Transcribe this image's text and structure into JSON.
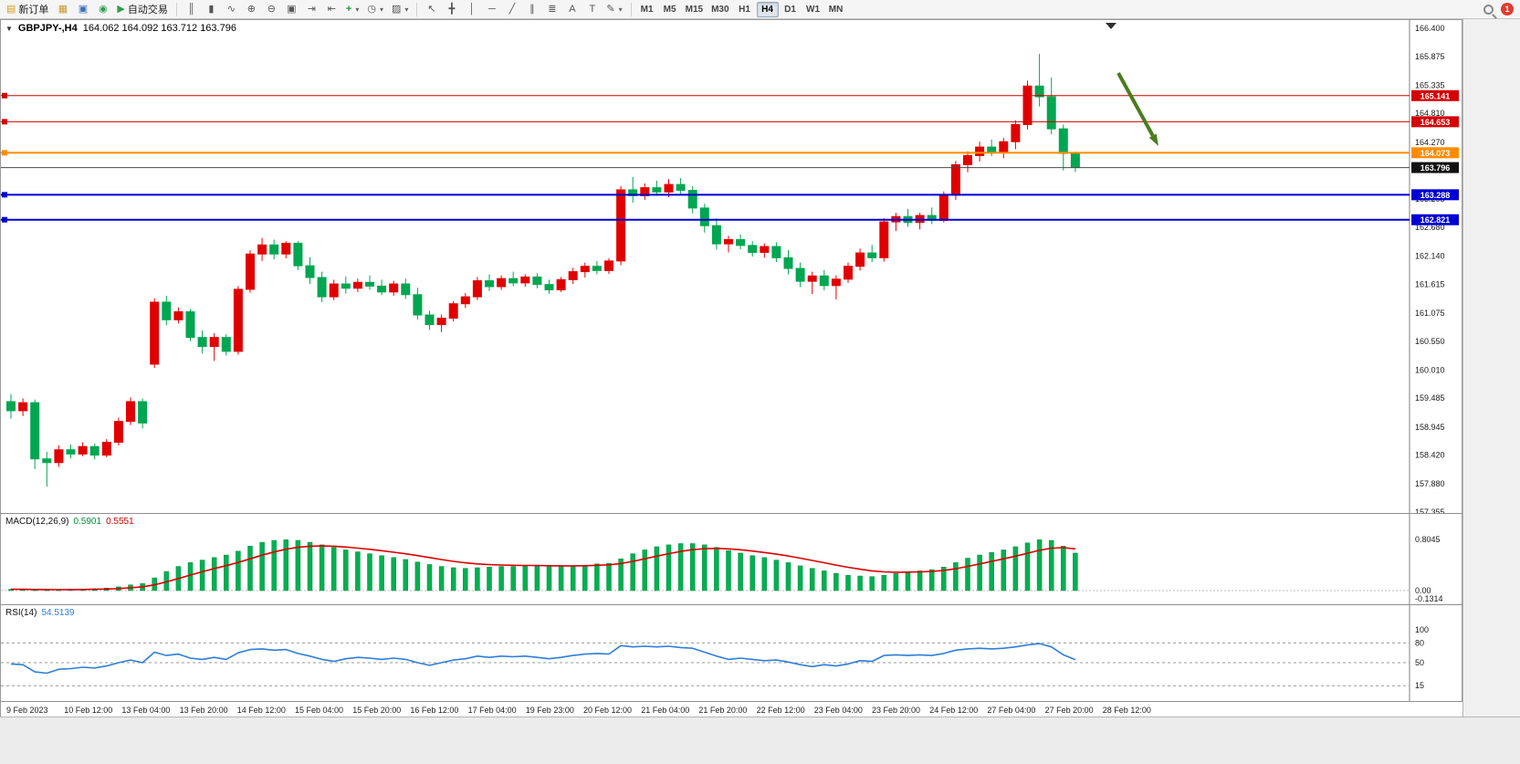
{
  "toolbar": {
    "file_buttons": [
      {
        "name": "new-order-button",
        "icon": "order-ticket-icon",
        "glyph": "▤",
        "glyph_color": "#d89c1e",
        "label": "新订单"
      },
      {
        "name": "new-chart-button",
        "icon": "new-chart-icon",
        "glyph": "▦",
        "glyph_color": "#c89a30"
      },
      {
        "name": "profiles-button",
        "icon": "profiles-icon",
        "glyph": "▣",
        "glyph_color": "#3f6fb5"
      },
      {
        "name": "market-watch-button",
        "icon": "market-watch-icon",
        "glyph": "◉",
        "glyph_color": "#2f9e4f"
      },
      {
        "name": "autotrading-button",
        "icon": "play-icon",
        "glyph": "▶",
        "glyph_color": "#2f9e4f",
        "label": "自动交易"
      }
    ],
    "chart_buttons": [
      {
        "name": "bar-chart-button",
        "icon": "bar-chart-icon",
        "glyph": "║"
      },
      {
        "name": "candlestick-button",
        "icon": "candlestick-icon",
        "glyph": "▮"
      },
      {
        "name": "line-chart-button",
        "icon": "line-chart-icon",
        "glyph": "∿"
      },
      {
        "name": "zoom-in-button",
        "icon": "zoom-in-icon",
        "glyph": "⊕"
      },
      {
        "name": "zoom-out-button",
        "icon": "zoom-out-icon",
        "glyph": "⊖"
      },
      {
        "name": "tile-windows-button",
        "icon": "tile-windows-icon",
        "glyph": "▣"
      },
      {
        "name": "auto-scroll-button",
        "icon": "auto-scroll-icon",
        "glyph": "⇥"
      },
      {
        "name": "chart-shift-button",
        "icon": "chart-shift-icon",
        "glyph": "⇤"
      },
      {
        "name": "indicators-button",
        "icon": "indicators-icon",
        "glyph": "+",
        "glyph_color": "#1f9e3f",
        "dropdown": true
      },
      {
        "name": "periods-button",
        "icon": "clock-icon",
        "glyph": "◷",
        "dropdown": true
      },
      {
        "name": "templates-button",
        "icon": "template-icon",
        "glyph": "▨",
        "dropdown": true
      }
    ],
    "line_buttons": [
      {
        "name": "cursor-button",
        "icon": "cursor-icon",
        "glyph": "↖"
      },
      {
        "name": "crosshair-button",
        "icon": "crosshair-icon",
        "glyph": "╋"
      },
      {
        "name": "vertical-line-button",
        "icon": "vertical-line-icon",
        "glyph": "│"
      },
      {
        "name": "horizontal-line-button",
        "icon": "horizontal-line-icon",
        "glyph": "─"
      },
      {
        "name": "trendline-button",
        "icon": "trendline-icon",
        "glyph": "╱"
      },
      {
        "name": "channel-button",
        "icon": "channel-icon",
        "glyph": "∥"
      },
      {
        "name": "fibonacci-button",
        "icon": "fibonacci-icon",
        "glyph": "≣"
      },
      {
        "name": "text-button",
        "icon": "text-icon",
        "glyph": "A"
      },
      {
        "name": "label-button",
        "icon": "label-icon",
        "glyph": "T"
      },
      {
        "name": "shapes-button",
        "icon": "shapes-icon",
        "glyph": "✎",
        "dropdown": true
      }
    ],
    "timeframes": [
      {
        "label": "M1"
      },
      {
        "label": "M5"
      },
      {
        "label": "M15"
      },
      {
        "label": "M30"
      },
      {
        "label": "H1"
      },
      {
        "label": "H4",
        "active": true
      },
      {
        "label": "D1"
      },
      {
        "label": "W1"
      },
      {
        "label": "MN"
      }
    ],
    "notification_count": "1"
  },
  "chart": {
    "header": {
      "collapse_glyph": "▼",
      "title": "GBPJPY-,H4",
      "ohlc": "164.062 164.092 163.712 163.796"
    }
  },
  "price_axis": {
    "ticks": [
      {
        "v": 166.4,
        "label": "166.400"
      },
      {
        "v": 165.875,
        "label": "165.875"
      },
      {
        "v": 165.335,
        "label": "165.335"
      },
      {
        "v": 164.81,
        "label": "164.810"
      },
      {
        "v": 164.27,
        "label": "164.270"
      },
      {
        "v": 163.745,
        "label": "163.745"
      },
      {
        "v": 163.205,
        "label": "163.205"
      },
      {
        "v": 162.68,
        "label": "162.680"
      },
      {
        "v": 162.14,
        "label": "162.140"
      },
      {
        "v": 161.615,
        "label": "161.615"
      },
      {
        "v": 161.075,
        "label": "161.075"
      },
      {
        "v": 160.55,
        "label": "160.550"
      },
      {
        "v": 160.01,
        "label": "160.010"
      },
      {
        "v": 159.485,
        "label": "159.485"
      },
      {
        "v": 158.945,
        "label": "158.945"
      },
      {
        "v": 158.42,
        "label": "158.420"
      },
      {
        "v": 157.88,
        "label": "157.880"
      },
      {
        "v": 157.355,
        "label": "157.355"
      }
    ]
  },
  "levels": [
    {
      "name": "resistance-line-upper",
      "value": 165.141,
      "label": "165.141",
      "color": "#d40000",
      "width": 1,
      "handle": true
    },
    {
      "name": "resistance-line-lower",
      "value": 164.653,
      "label": "164.653",
      "color": "#d40000",
      "width": 1,
      "handle": true
    },
    {
      "name": "pivot-line-orange",
      "value": 164.073,
      "label": "164.073",
      "color": "#ff8c00",
      "width": 2,
      "handle": true
    },
    {
      "name": "bid-price-line",
      "value": 163.796,
      "label": "163.796",
      "color": "#4a4a4a",
      "tag_color": "#111111",
      "width": 1
    },
    {
      "name": "support-line-upper",
      "value": 163.288,
      "label": "163.288",
      "color": "#0000d4",
      "width": 2,
      "handle": true
    },
    {
      "name": "support-line-lower",
      "value": 162.821,
      "label": "162.821",
      "color": "#0000d4",
      "width": 2,
      "handle": true
    }
  ],
  "annotations": {
    "arrow": {
      "tail": [
        1224,
        58
      ],
      "tip": [
        1268,
        138
      ],
      "color": "#4a7d1c"
    }
  },
  "panes": {
    "macd": {
      "name": "MACD(12,26,9)",
      "value_main": "0.5901",
      "value_signal": "0.5551",
      "axis": [
        {
          "v": 0.8045,
          "label": "0.8045"
        },
        {
          "v": 0,
          "label": "0.00"
        },
        {
          "v": -0.1314,
          "label": "-0.1314"
        }
      ]
    },
    "rsi": {
      "name": "RSI(14)",
      "value": "54.5139",
      "axis": [
        {
          "v": 100,
          "label": "100"
        },
        {
          "v": 80,
          "label": "80"
        },
        {
          "v": 50,
          "label": "50"
        },
        {
          "v": 15,
          "label": "15"
        }
      ],
      "levels": [
        80,
        50,
        15
      ]
    }
  },
  "time_axis": {
    "labels": [
      "9 Feb 2023",
      "10 Feb 12:00",
      "13 Feb 04:00",
      "13 Feb 20:00",
      "14 Feb 12:00",
      "15 Feb 04:00",
      "15 Feb 20:00",
      "16 Feb 12:00",
      "17 Feb 04:00",
      "19 Feb 23:00",
      "20 Feb 12:00",
      "21 Feb 04:00",
      "21 Feb 20:00",
      "22 Feb 12:00",
      "23 Feb 04:00",
      "23 Feb 20:00",
      "24 Feb 12:00",
      "27 Feb 04:00",
      "27 Feb 20:00",
      "28 Feb 12:00"
    ]
  },
  "colors": {
    "bull": "#e00000",
    "bear": "#00a651",
    "macd_bar": "#00b050",
    "macd_bar_edge": "#00903f",
    "macd_signal": "#dd0000",
    "rsi_line": "#2f7ed8"
  },
  "chart_data": {
    "type": "candlestick",
    "symbol": "GBPJPY-",
    "timeframe": "H4",
    "title": "GBPJPY-,H4",
    "last_ohlc": {
      "open": 164.062,
      "high": 164.092,
      "low": 163.712,
      "close": 163.796
    },
    "ylim": [
      157.355,
      166.4
    ],
    "candles": [
      [
        159.42,
        159.56,
        159.1,
        159.25
      ],
      [
        159.25,
        159.48,
        159.15,
        159.4
      ],
      [
        159.4,
        159.46,
        158.16,
        158.35
      ],
      [
        158.35,
        158.48,
        157.83,
        158.28
      ],
      [
        158.28,
        158.6,
        158.2,
        158.52
      ],
      [
        158.52,
        158.62,
        158.36,
        158.44
      ],
      [
        158.44,
        158.66,
        158.4,
        158.58
      ],
      [
        158.58,
        158.64,
        158.34,
        158.42
      ],
      [
        158.42,
        158.72,
        158.38,
        158.66
      ],
      [
        158.66,
        159.12,
        158.6,
        159.05
      ],
      [
        159.05,
        159.5,
        158.98,
        159.42
      ],
      [
        159.42,
        159.48,
        158.92,
        159.02
      ],
      [
        160.12,
        161.35,
        160.05,
        161.28
      ],
      [
        161.28,
        161.4,
        160.85,
        160.95
      ],
      [
        160.95,
        161.18,
        160.88,
        161.1
      ],
      [
        161.1,
        161.15,
        160.55,
        160.62
      ],
      [
        160.62,
        160.75,
        160.32,
        160.45
      ],
      [
        160.45,
        160.7,
        160.18,
        160.62
      ],
      [
        160.62,
        160.68,
        160.28,
        160.36
      ],
      [
        160.36,
        161.58,
        160.3,
        161.52
      ],
      [
        161.52,
        162.25,
        161.46,
        162.18
      ],
      [
        162.18,
        162.48,
        162.05,
        162.35
      ],
      [
        162.35,
        162.45,
        162.08,
        162.18
      ],
      [
        162.18,
        162.42,
        162.1,
        162.38
      ],
      [
        162.38,
        162.42,
        161.88,
        161.96
      ],
      [
        161.96,
        162.12,
        161.62,
        161.74
      ],
      [
        161.74,
        161.85,
        161.28,
        161.38
      ],
      [
        161.38,
        161.7,
        161.32,
        161.62
      ],
      [
        161.62,
        161.76,
        161.44,
        161.54
      ],
      [
        161.54,
        161.72,
        161.47,
        161.65
      ],
      [
        161.65,
        161.78,
        161.51,
        161.58
      ],
      [
        161.58,
        161.7,
        161.41,
        161.47
      ],
      [
        161.47,
        161.68,
        161.4,
        161.62
      ],
      [
        161.62,
        161.72,
        161.34,
        161.42
      ],
      [
        161.42,
        161.55,
        160.95,
        161.04
      ],
      [
        161.04,
        161.12,
        160.76,
        160.86
      ],
      [
        160.86,
        161.05,
        160.72,
        160.98
      ],
      [
        160.98,
        161.3,
        160.92,
        161.25
      ],
      [
        161.25,
        161.45,
        161.17,
        161.38
      ],
      [
        161.38,
        161.75,
        161.32,
        161.68
      ],
      [
        161.68,
        161.8,
        161.49,
        161.57
      ],
      [
        161.57,
        161.78,
        161.51,
        161.72
      ],
      [
        161.72,
        161.85,
        161.58,
        161.64
      ],
      [
        161.64,
        161.8,
        161.57,
        161.75
      ],
      [
        161.75,
        161.82,
        161.54,
        161.61
      ],
      [
        161.61,
        161.7,
        161.44,
        161.51
      ],
      [
        161.51,
        161.75,
        161.47,
        161.7
      ],
      [
        161.7,
        161.92,
        161.62,
        161.85
      ],
      [
        161.85,
        162.02,
        161.74,
        161.95
      ],
      [
        161.95,
        162.05,
        161.8,
        161.87
      ],
      [
        161.87,
        162.1,
        161.81,
        162.05
      ],
      [
        162.05,
        163.45,
        161.97,
        163.38
      ],
      [
        163.38,
        163.62,
        163.14,
        163.27
      ],
      [
        163.27,
        163.5,
        163.19,
        163.42
      ],
      [
        163.42,
        163.55,
        163.27,
        163.34
      ],
      [
        163.34,
        163.58,
        163.24,
        163.48
      ],
      [
        163.48,
        163.6,
        163.29,
        163.37
      ],
      [
        163.37,
        163.45,
        162.94,
        163.04
      ],
      [
        163.04,
        163.12,
        162.58,
        162.71
      ],
      [
        162.71,
        162.85,
        162.26,
        162.37
      ],
      [
        162.37,
        162.52,
        162.21,
        162.45
      ],
      [
        162.45,
        162.55,
        162.27,
        162.34
      ],
      [
        162.34,
        162.42,
        162.13,
        162.21
      ],
      [
        162.21,
        162.38,
        162.11,
        162.32
      ],
      [
        162.32,
        162.4,
        162.03,
        162.11
      ],
      [
        162.11,
        162.25,
        161.8,
        161.91
      ],
      [
        161.91,
        162.02,
        161.56,
        161.67
      ],
      [
        161.67,
        161.85,
        161.43,
        161.77
      ],
      [
        161.77,
        161.88,
        161.5,
        161.59
      ],
      [
        161.59,
        161.78,
        161.33,
        161.71
      ],
      [
        161.71,
        162.02,
        161.64,
        161.95
      ],
      [
        161.95,
        162.28,
        161.87,
        162.2
      ],
      [
        162.2,
        162.35,
        162.03,
        162.11
      ],
      [
        162.11,
        162.85,
        162.04,
        162.78
      ],
      [
        162.78,
        162.95,
        162.61,
        162.88
      ],
      [
        162.88,
        163.02,
        162.69,
        162.77
      ],
      [
        162.77,
        162.95,
        162.64,
        162.9
      ],
      [
        162.9,
        163.05,
        162.74,
        162.81
      ],
      [
        162.81,
        163.35,
        162.77,
        163.28
      ],
      [
        163.28,
        163.92,
        163.19,
        163.85
      ],
      [
        163.85,
        164.1,
        163.71,
        164.02
      ],
      [
        164.02,
        164.28,
        163.91,
        164.18
      ],
      [
        164.18,
        164.32,
        164.01,
        164.09
      ],
      [
        164.09,
        164.35,
        163.97,
        164.28
      ],
      [
        164.28,
        164.68,
        164.14,
        164.6
      ],
      [
        164.6,
        165.42,
        164.51,
        165.32
      ],
      [
        165.32,
        165.92,
        164.94,
        165.12
      ],
      [
        165.12,
        165.48,
        164.42,
        164.52
      ],
      [
        164.52,
        164.6,
        163.74,
        164.06
      ],
      [
        164.062,
        164.092,
        163.712,
        163.796
      ]
    ],
    "macd": [
      0.02,
      0.02,
      0.01,
      0.01,
      0.01,
      0.02,
      0.02,
      0.03,
      0.04,
      0.06,
      0.09,
      0.11,
      0.2,
      0.3,
      0.38,
      0.44,
      0.48,
      0.52,
      0.56,
      0.62,
      0.7,
      0.76,
      0.79,
      0.8,
      0.79,
      0.76,
      0.72,
      0.68,
      0.64,
      0.61,
      0.58,
      0.55,
      0.52,
      0.49,
      0.45,
      0.41,
      0.38,
      0.36,
      0.35,
      0.36,
      0.37,
      0.38,
      0.38,
      0.39,
      0.39,
      0.38,
      0.38,
      0.39,
      0.4,
      0.42,
      0.43,
      0.5,
      0.58,
      0.64,
      0.69,
      0.72,
      0.74,
      0.74,
      0.72,
      0.68,
      0.63,
      0.59,
      0.55,
      0.52,
      0.48,
      0.44,
      0.39,
      0.35,
      0.31,
      0.27,
      0.24,
      0.23,
      0.22,
      0.24,
      0.27,
      0.29,
      0.31,
      0.33,
      0.37,
      0.44,
      0.51,
      0.56,
      0.6,
      0.64,
      0.69,
      0.75,
      0.8,
      0.79,
      0.7,
      0.59
    ],
    "rsi": [
      48,
      47,
      36,
      34,
      40,
      41,
      43,
      42,
      45,
      50,
      54,
      50,
      66,
      61,
      63,
      57,
      55,
      58,
      55,
      65,
      70,
      71,
      69,
      70,
      64,
      60,
      55,
      52,
      56,
      58,
      57,
      55,
      57,
      55,
      50,
      46,
      50,
      54,
      56,
      60,
      58,
      60,
      59,
      60,
      58,
      56,
      58,
      61,
      63,
      64,
      63,
      76,
      74,
      75,
      74,
      75,
      73,
      72,
      66,
      60,
      55,
      57,
      55,
      53,
      54,
      51,
      47,
      44,
      47,
      45,
      48,
      53,
      52,
      61,
      62,
      61,
      62,
      61,
      64,
      69,
      71,
      72,
      71,
      72,
      74,
      77,
      79,
      74,
      62,
      54.5
    ]
  }
}
